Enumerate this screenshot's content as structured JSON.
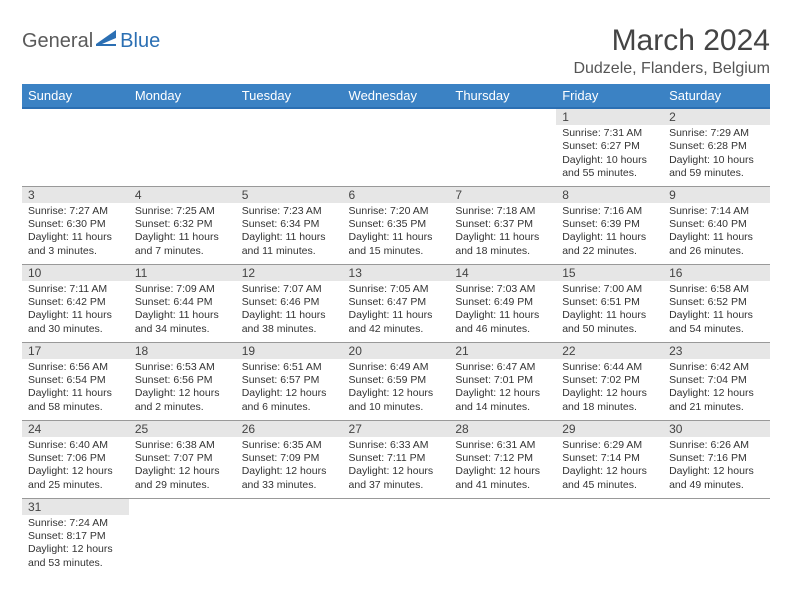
{
  "logo": {
    "part1": "General",
    "part2": "Blue"
  },
  "title": "March 2024",
  "location": "Dudzele, Flanders, Belgium",
  "colors": {
    "header_bg": "#3b82c4",
    "header_border": "#2b6fb3",
    "daynum_bg": "#e6e6e6",
    "cell_border": "#999999",
    "text": "#333333",
    "logo_gray": "#5a5a5a",
    "logo_blue": "#2b6fb3"
  },
  "day_headers": [
    "Sunday",
    "Monday",
    "Tuesday",
    "Wednesday",
    "Thursday",
    "Friday",
    "Saturday"
  ],
  "weeks": [
    [
      null,
      null,
      null,
      null,
      null,
      {
        "n": "1",
        "sr": "7:31 AM",
        "ss": "6:27 PM",
        "dl": "10 hours and 55 minutes."
      },
      {
        "n": "2",
        "sr": "7:29 AM",
        "ss": "6:28 PM",
        "dl": "10 hours and 59 minutes."
      }
    ],
    [
      {
        "n": "3",
        "sr": "7:27 AM",
        "ss": "6:30 PM",
        "dl": "11 hours and 3 minutes."
      },
      {
        "n": "4",
        "sr": "7:25 AM",
        "ss": "6:32 PM",
        "dl": "11 hours and 7 minutes."
      },
      {
        "n": "5",
        "sr": "7:23 AM",
        "ss": "6:34 PM",
        "dl": "11 hours and 11 minutes."
      },
      {
        "n": "6",
        "sr": "7:20 AM",
        "ss": "6:35 PM",
        "dl": "11 hours and 15 minutes."
      },
      {
        "n": "7",
        "sr": "7:18 AM",
        "ss": "6:37 PM",
        "dl": "11 hours and 18 minutes."
      },
      {
        "n": "8",
        "sr": "7:16 AM",
        "ss": "6:39 PM",
        "dl": "11 hours and 22 minutes."
      },
      {
        "n": "9",
        "sr": "7:14 AM",
        "ss": "6:40 PM",
        "dl": "11 hours and 26 minutes."
      }
    ],
    [
      {
        "n": "10",
        "sr": "7:11 AM",
        "ss": "6:42 PM",
        "dl": "11 hours and 30 minutes."
      },
      {
        "n": "11",
        "sr": "7:09 AM",
        "ss": "6:44 PM",
        "dl": "11 hours and 34 minutes."
      },
      {
        "n": "12",
        "sr": "7:07 AM",
        "ss": "6:46 PM",
        "dl": "11 hours and 38 minutes."
      },
      {
        "n": "13",
        "sr": "7:05 AM",
        "ss": "6:47 PM",
        "dl": "11 hours and 42 minutes."
      },
      {
        "n": "14",
        "sr": "7:03 AM",
        "ss": "6:49 PM",
        "dl": "11 hours and 46 minutes."
      },
      {
        "n": "15",
        "sr": "7:00 AM",
        "ss": "6:51 PM",
        "dl": "11 hours and 50 minutes."
      },
      {
        "n": "16",
        "sr": "6:58 AM",
        "ss": "6:52 PM",
        "dl": "11 hours and 54 minutes."
      }
    ],
    [
      {
        "n": "17",
        "sr": "6:56 AM",
        "ss": "6:54 PM",
        "dl": "11 hours and 58 minutes."
      },
      {
        "n": "18",
        "sr": "6:53 AM",
        "ss": "6:56 PM",
        "dl": "12 hours and 2 minutes."
      },
      {
        "n": "19",
        "sr": "6:51 AM",
        "ss": "6:57 PM",
        "dl": "12 hours and 6 minutes."
      },
      {
        "n": "20",
        "sr": "6:49 AM",
        "ss": "6:59 PM",
        "dl": "12 hours and 10 minutes."
      },
      {
        "n": "21",
        "sr": "6:47 AM",
        "ss": "7:01 PM",
        "dl": "12 hours and 14 minutes."
      },
      {
        "n": "22",
        "sr": "6:44 AM",
        "ss": "7:02 PM",
        "dl": "12 hours and 18 minutes."
      },
      {
        "n": "23",
        "sr": "6:42 AM",
        "ss": "7:04 PM",
        "dl": "12 hours and 21 minutes."
      }
    ],
    [
      {
        "n": "24",
        "sr": "6:40 AM",
        "ss": "7:06 PM",
        "dl": "12 hours and 25 minutes."
      },
      {
        "n": "25",
        "sr": "6:38 AM",
        "ss": "7:07 PM",
        "dl": "12 hours and 29 minutes."
      },
      {
        "n": "26",
        "sr": "6:35 AM",
        "ss": "7:09 PM",
        "dl": "12 hours and 33 minutes."
      },
      {
        "n": "27",
        "sr": "6:33 AM",
        "ss": "7:11 PM",
        "dl": "12 hours and 37 minutes."
      },
      {
        "n": "28",
        "sr": "6:31 AM",
        "ss": "7:12 PM",
        "dl": "12 hours and 41 minutes."
      },
      {
        "n": "29",
        "sr": "6:29 AM",
        "ss": "7:14 PM",
        "dl": "12 hours and 45 minutes."
      },
      {
        "n": "30",
        "sr": "6:26 AM",
        "ss": "7:16 PM",
        "dl": "12 hours and 49 minutes."
      }
    ],
    [
      {
        "n": "31",
        "sr": "7:24 AM",
        "ss": "8:17 PM",
        "dl": "12 hours and 53 minutes."
      },
      null,
      null,
      null,
      null,
      null,
      null
    ]
  ],
  "labels": {
    "sunrise": "Sunrise: ",
    "sunset": "Sunset: ",
    "daylight": "Daylight: "
  }
}
